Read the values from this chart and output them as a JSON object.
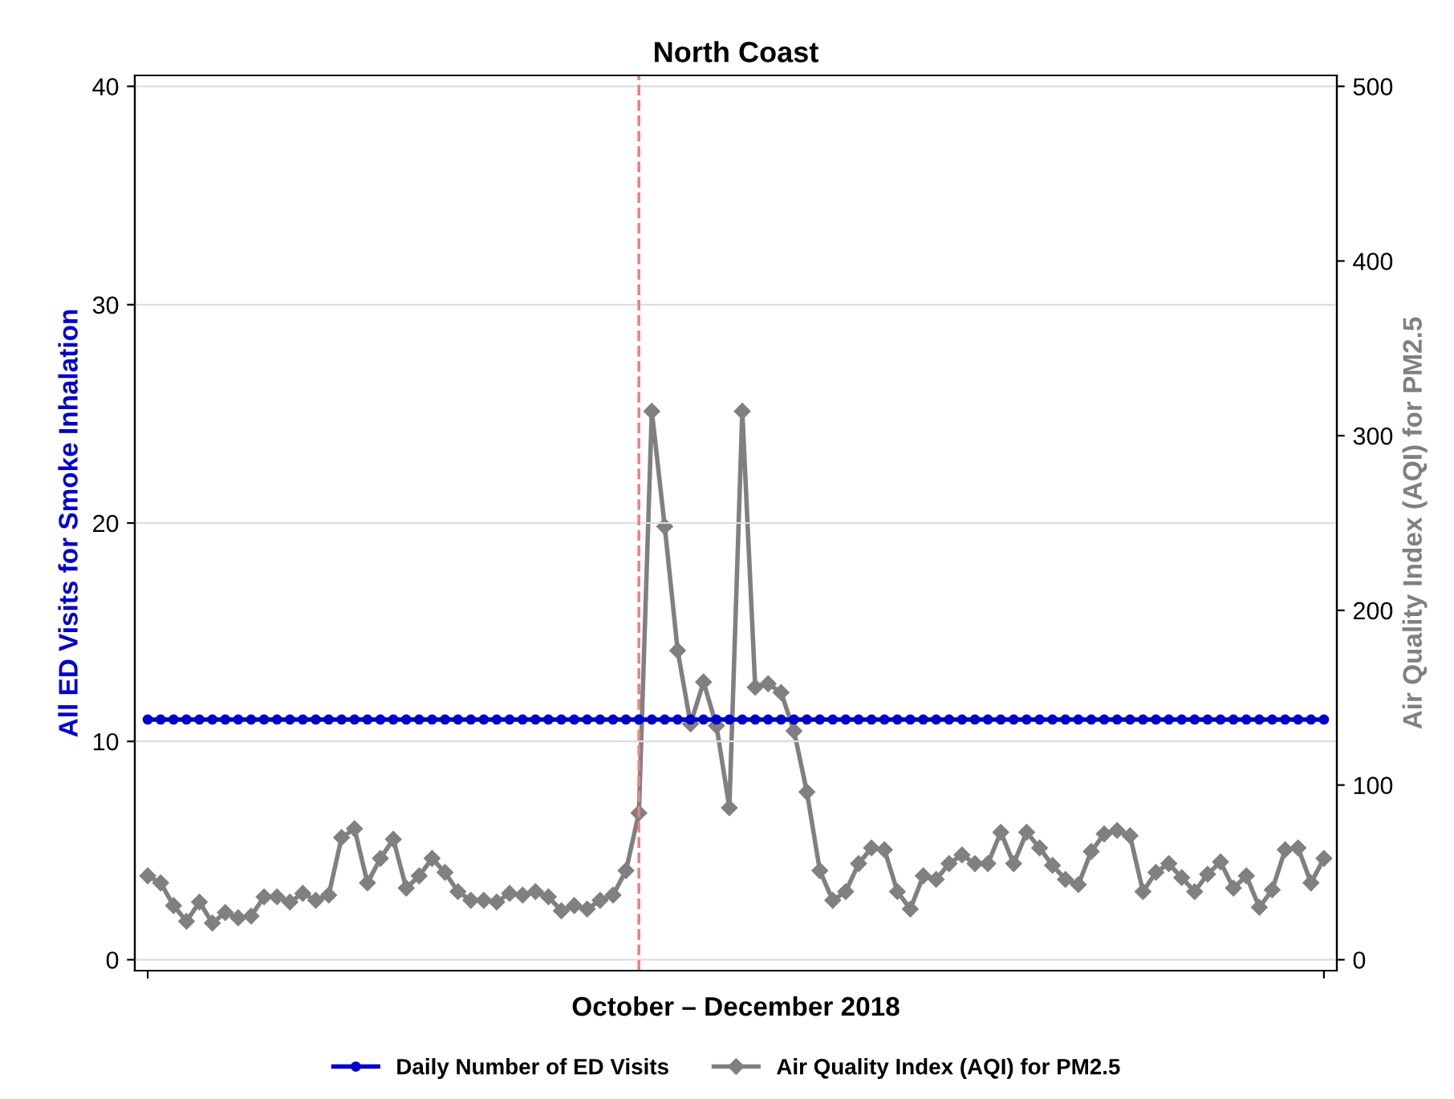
{
  "chart_data": {
    "type": "line",
    "title": "North Coast",
    "xlabel": "October – December 2018",
    "ylabel": "All ED Visits for Smoke Inhalation",
    "y2label": "Air Quality Index (AQI) for PM2.5",
    "categories": [
      null,
      null,
      null,
      null,
      null,
      null,
      null,
      null,
      null,
      null,
      null,
      null,
      null,
      null,
      null,
      null,
      null,
      null,
      null,
      null,
      null,
      null,
      null,
      null,
      null,
      null,
      null,
      null,
      null,
      null,
      null,
      null,
      null,
      null,
      null,
      null,
      null,
      null,
      null,
      null,
      null,
      null,
      null,
      null,
      null,
      null,
      null,
      null,
      null,
      null,
      null,
      null,
      null,
      null,
      null,
      null,
      null,
      null,
      null,
      null,
      null,
      null,
      null,
      null,
      null,
      null,
      null,
      null,
      null,
      null,
      null,
      null,
      null,
      null,
      null,
      null,
      null,
      null,
      null,
      null,
      null,
      null,
      null,
      null,
      null,
      null,
      null,
      null,
      null,
      null,
      null,
      null
    ],
    "series": [
      {
        "name": "Daily Number of ED Visits",
        "color": "#0000cc",
        "marker": "circle",
        "values": [
          11,
          11,
          11,
          11,
          11,
          11,
          11,
          11,
          11,
          11,
          11,
          11,
          11,
          11,
          11,
          11,
          11,
          11,
          11,
          11,
          11,
          11,
          11,
          11,
          11,
          11,
          11,
          11,
          11,
          11,
          11,
          11,
          11,
          11,
          11,
          11,
          11,
          11,
          11,
          11,
          11,
          11,
          11,
          11,
          11,
          11,
          11,
          11,
          11,
          11,
          11,
          11,
          11,
          11,
          11,
          11,
          11,
          11,
          11,
          11,
          11,
          11,
          11,
          11,
          11,
          11,
          11,
          11,
          11,
          11,
          11,
          11,
          11,
          11,
          11,
          11,
          11,
          11,
          11,
          11,
          11,
          11,
          11,
          11,
          11,
          11,
          11,
          11,
          11,
          11,
          11,
          11
        ]
      },
      {
        "name": "Air Quality Index (AQI) for PM2.5",
        "color": "#808080",
        "marker": "diamond",
        "axis": "y2",
        "values": [
          48,
          44,
          31,
          22,
          33,
          21,
          27,
          24,
          25,
          36,
          36,
          33,
          38,
          34,
          37,
          70,
          75,
          44,
          58,
          69,
          41,
          48,
          58,
          50,
          39,
          34,
          34,
          33,
          38,
          37,
          39,
          36,
          28,
          31,
          29,
          34,
          37,
          51,
          84,
          314,
          248,
          177,
          135,
          159,
          134,
          87,
          314,
          156,
          158,
          153,
          131,
          96,
          51,
          34,
          39,
          55,
          64,
          63,
          39,
          29,
          48,
          46,
          55,
          60,
          55,
          55,
          73,
          55,
          73,
          64,
          54,
          46,
          43,
          62,
          72,
          74,
          71,
          39,
          50,
          55,
          47,
          39,
          49,
          56,
          41,
          48,
          30,
          40,
          63,
          64,
          44,
          58
        ]
      }
    ],
    "ylim": [
      -0.5,
      40.5
    ],
    "yticks": [
      0,
      10,
      20,
      30,
      40
    ],
    "y2lim": [
      -6.25,
      506.25
    ],
    "y2ticks": [
      0,
      100,
      200,
      300,
      400,
      500
    ],
    "grid": "y",
    "legend": "bottom",
    "line_style": "solid",
    "tick_labels": "y"
  }
}
